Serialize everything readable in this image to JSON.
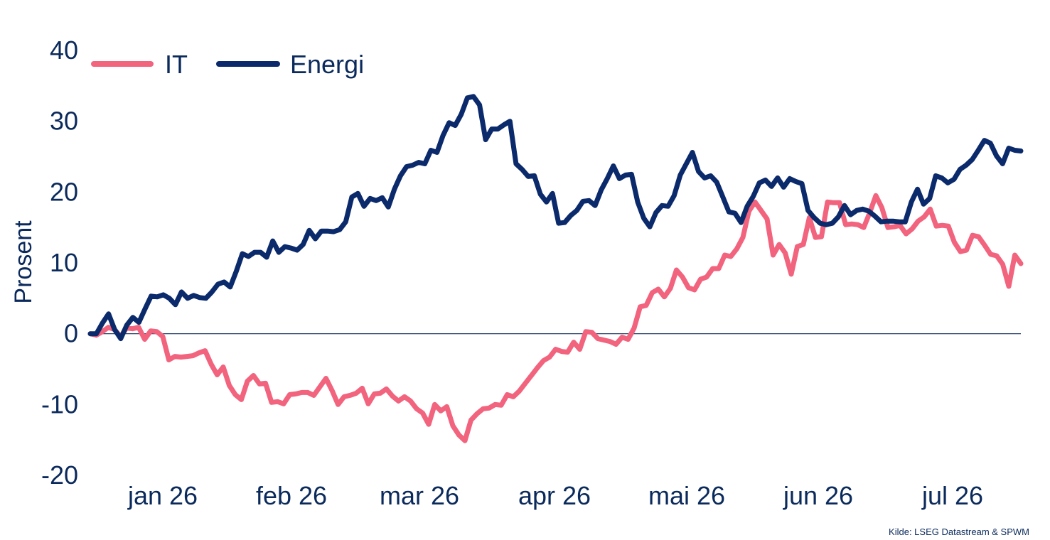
{
  "chart_data": {
    "type": "line",
    "title": "",
    "xlabel": "",
    "ylabel": "Prosent",
    "ylim": [
      -20,
      40
    ],
    "yticks": [
      -20,
      -10,
      0,
      10,
      20,
      30,
      40
    ],
    "xticks": [
      "jan 26",
      "feb 26",
      "mar 26",
      "apr 26",
      "mai 26",
      "jun 26",
      "jul 26"
    ],
    "legend_position": "top-left",
    "grid": false,
    "zero_line": true,
    "source": "Kilde: LSEG Datastream & SPWM",
    "series": [
      {
        "name": "IT",
        "color": "#f2637e",
        "values": [
          0,
          -0.2,
          0.3,
          0.9,
          0.6,
          -0.4,
          0.8,
          0.7,
          0.9,
          -0.8,
          0.4,
          0.3,
          -0.4,
          -3.7,
          -3.2,
          -3.3,
          -3.2,
          -3.1,
          -2.7,
          -2.4,
          -4.3,
          -5.8,
          -4.7,
          -7.3,
          -8.6,
          -9.3,
          -6.7,
          -5.9,
          -7.1,
          -7.0,
          -9.7,
          -9.6,
          -9.9,
          -8.6,
          -8.5,
          -8.3,
          -8.3,
          -8.7,
          -7.5,
          -6.3,
          -8.0,
          -10.0,
          -8.9,
          -8.7,
          -8.4,
          -7.7,
          -9.9,
          -8.5,
          -8.4,
          -7.8,
          -8.8,
          -9.5,
          -8.9,
          -9.5,
          -10.6,
          -11.2,
          -12.8,
          -10.0,
          -10.9,
          -10.3,
          -13.0,
          -14.3,
          -15.1,
          -12.2,
          -11.3,
          -10.6,
          -10.5,
          -10.0,
          -10.1,
          -8.6,
          -8.9,
          -8.1,
          -7.0,
          -5.9,
          -4.8,
          -3.8,
          -3.3,
          -2.2,
          -2.5,
          -2.6,
          -1.2,
          -2.2,
          0.3,
          0.2,
          -0.7,
          -0.9,
          -1.1,
          -1.5,
          -0.5,
          -0.8,
          0.8,
          3.8,
          4.0,
          5.8,
          6.3,
          5.2,
          6.4,
          9.0,
          8.0,
          6.5,
          6.2,
          7.7,
          8.0,
          9.2,
          9.2,
          11.1,
          10.9,
          12.0,
          13.6,
          17.3,
          18.6,
          17.4,
          16.2,
          11.1,
          12.6,
          11.4,
          8.4,
          12.3,
          12.6,
          16.4,
          13.6,
          13.7,
          18.6,
          18.5,
          18.5,
          15.4,
          15.5,
          15.4,
          15.0,
          17.1,
          19.5,
          17.8,
          15.0,
          15.1,
          15.3,
          14.1,
          14.8,
          15.9,
          16.5,
          17.6,
          15.2,
          15.3,
          15.2,
          12.9,
          11.6,
          11.8,
          13.9,
          13.7,
          12.5,
          11.2,
          11.0,
          9.8,
          6.7,
          11.1,
          9.9
        ]
      },
      {
        "name": "Energi",
        "color": "#0b2a6b",
        "values": [
          0,
          0,
          1.5,
          2.8,
          0.6,
          -0.7,
          1.2,
          2.3,
          1.6,
          3.5,
          5.3,
          5.2,
          5.5,
          5.0,
          4.1,
          5.9,
          5.0,
          5.4,
          5.1,
          5.0,
          5.9,
          7.0,
          7.3,
          6.6,
          8.8,
          11.3,
          10.9,
          11.5,
          11.5,
          10.8,
          13.1,
          11.5,
          12.3,
          12.1,
          11.8,
          12.6,
          14.6,
          13.4,
          14.5,
          14.5,
          14.4,
          14.7,
          15.8,
          19.3,
          19.8,
          18.0,
          19.1,
          18.8,
          19.2,
          17.9,
          20.4,
          22.3,
          23.6,
          23.8,
          24.2,
          24.0,
          25.9,
          25.6,
          28.0,
          29.8,
          29.4,
          31.0,
          33.3,
          33.5,
          32.3,
          27.4,
          28.9,
          28.9,
          29.5,
          30.0,
          24.0,
          23.2,
          22.2,
          22.3,
          19.7,
          18.6,
          19.8,
          15.6,
          15.7,
          16.7,
          17.4,
          18.7,
          18.8,
          18.1,
          20.3,
          21.9,
          23.7,
          21.9,
          22.4,
          22.5,
          18.6,
          16.3,
          15.1,
          17.1,
          18.1,
          18.0,
          19.5,
          22.4,
          24.0,
          25.6,
          22.9,
          22.0,
          22.3,
          21.4,
          19.3,
          17.2,
          17.0,
          15.7,
          18.0,
          19.4,
          21.3,
          21.7,
          20.8,
          22.0,
          20.7,
          21.9,
          21.5,
          21.2,
          17.4,
          16.4,
          15.6,
          15.4,
          15.6,
          16.5,
          18.1,
          16.8,
          17.4,
          17.6,
          17.3,
          16.6,
          15.8,
          15.9,
          15.9,
          15.8,
          15.8,
          18.6,
          20.4,
          18.3,
          19.1,
          22.3,
          22.0,
          21.3,
          21.8,
          23.2,
          23.8,
          24.6,
          25.9,
          27.3,
          26.9,
          25.1,
          24.0,
          26.2,
          25.9,
          25.8
        ]
      }
    ]
  }
}
